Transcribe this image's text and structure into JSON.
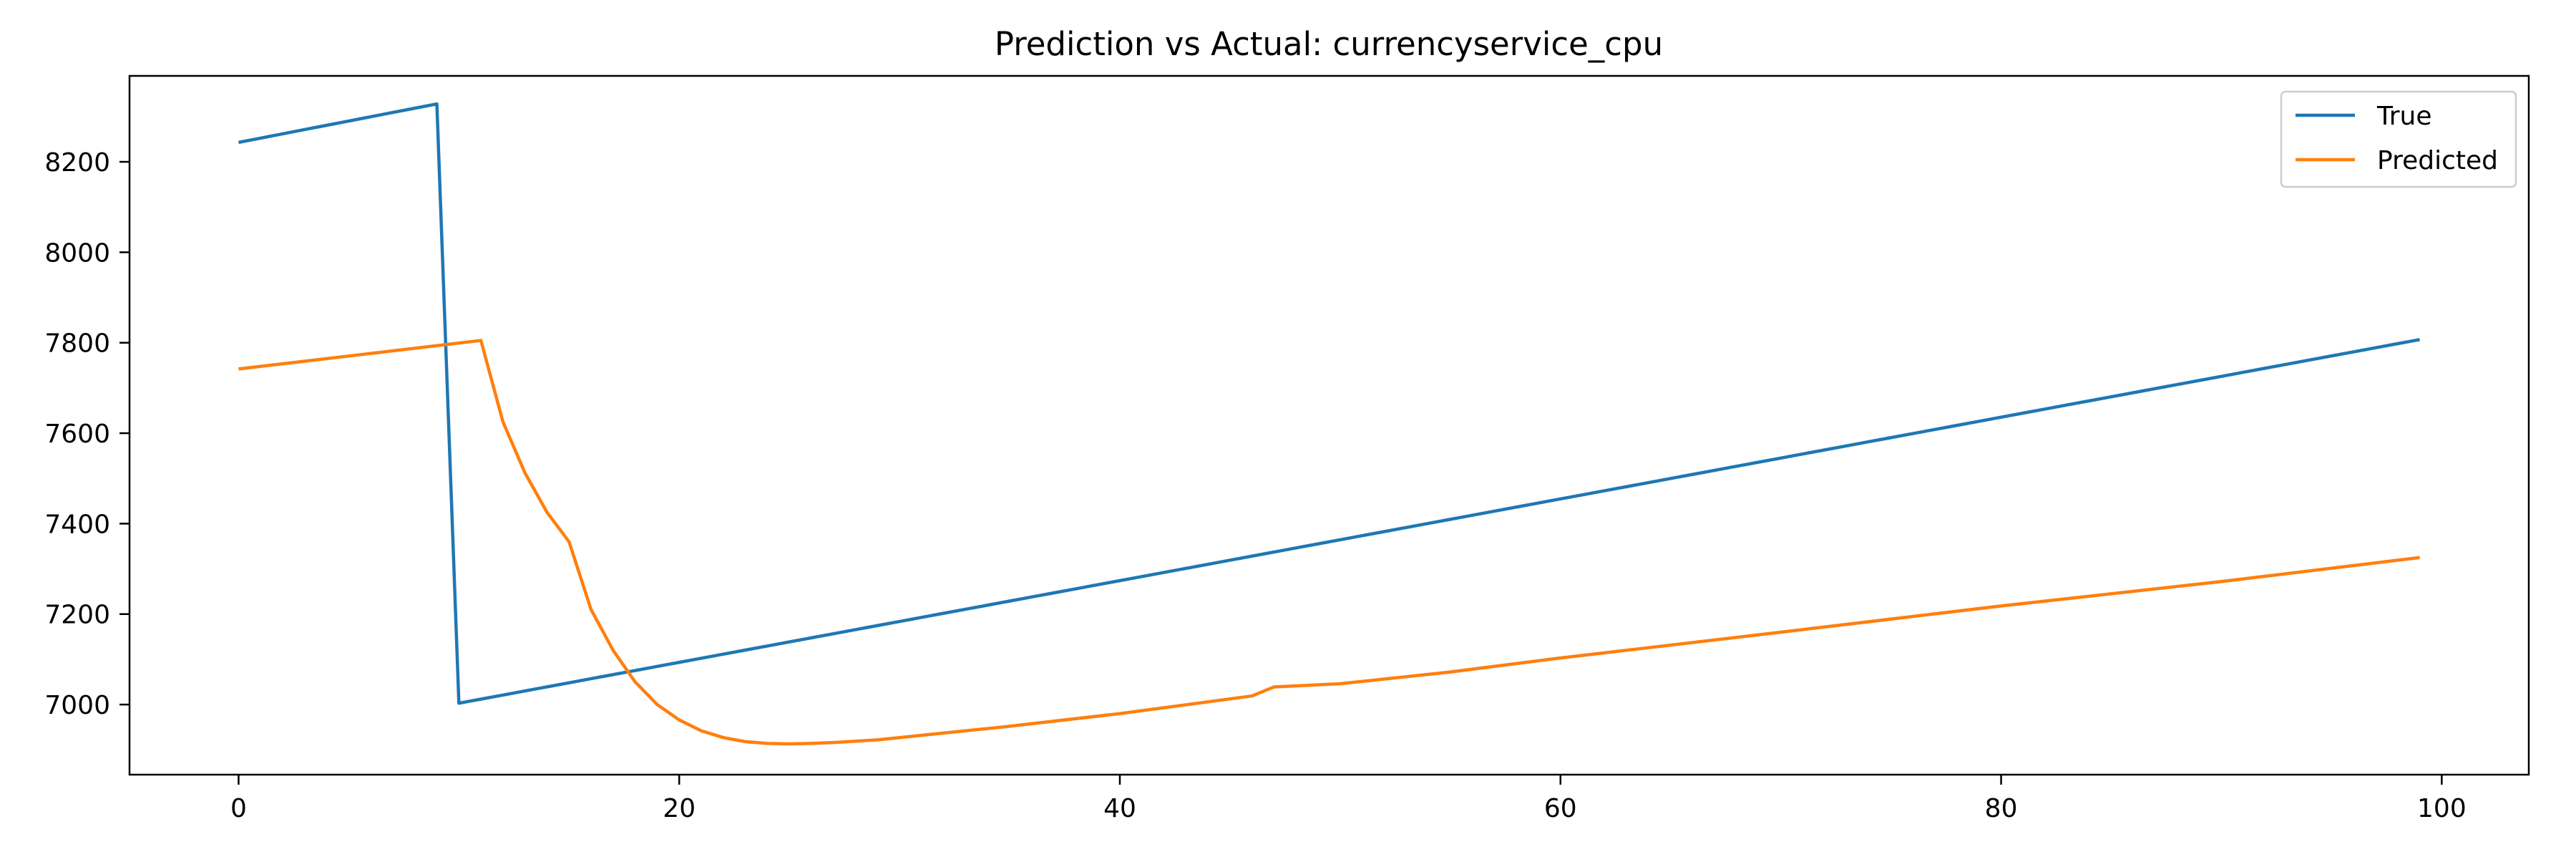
{
  "chart_data": {
    "type": "line",
    "title": "Prediction vs Actual: currencyservice_cpu",
    "xlabel": "",
    "ylabel": "",
    "xlim": [
      -4.95,
      103.95
    ],
    "ylim": [
      6845,
      8390
    ],
    "x_ticks": [
      0,
      20,
      40,
      60,
      80,
      100
    ],
    "y_ticks": [
      7000,
      7200,
      7400,
      7600,
      7800,
      8000,
      8200
    ],
    "grid": false,
    "legend": "top-right",
    "series": [
      {
        "name": "True",
        "color": "#1f77b4",
        "segments": [
          {
            "x": [
              0,
              9
            ],
            "y": [
              8243,
              8328
            ]
          },
          {
            "x": [
              10,
              99
            ],
            "y": [
              7003,
              7807
            ]
          }
        ],
        "points": [
          [
            9,
            8328
          ],
          [
            10,
            7003
          ]
        ]
      },
      {
        "name": "Predicted",
        "color": "#ff7f0e",
        "points": [
          [
            0,
            7742
          ],
          [
            11,
            7805
          ],
          [
            12,
            7625
          ],
          [
            13,
            7512
          ],
          [
            14,
            7425
          ],
          [
            15,
            7360
          ],
          [
            16,
            7210
          ],
          [
            17,
            7120
          ],
          [
            18,
            7050
          ],
          [
            19,
            7000
          ],
          [
            20,
            6966
          ],
          [
            21,
            6942
          ],
          [
            22,
            6927
          ],
          [
            23,
            6918
          ],
          [
            24,
            6914
          ],
          [
            25,
            6913
          ],
          [
            26,
            6914
          ],
          [
            27,
            6916
          ],
          [
            28,
            6919
          ],
          [
            29,
            6922
          ],
          [
            30,
            6927
          ],
          [
            35,
            6952
          ],
          [
            40,
            6980
          ],
          [
            46,
            7019
          ],
          [
            47,
            7039
          ],
          [
            50,
            7046
          ],
          [
            55,
            7072
          ],
          [
            60,
            7103
          ],
          [
            70,
            7160
          ],
          [
            80,
            7218
          ],
          [
            90,
            7272
          ],
          [
            99,
            7325
          ]
        ]
      }
    ]
  }
}
